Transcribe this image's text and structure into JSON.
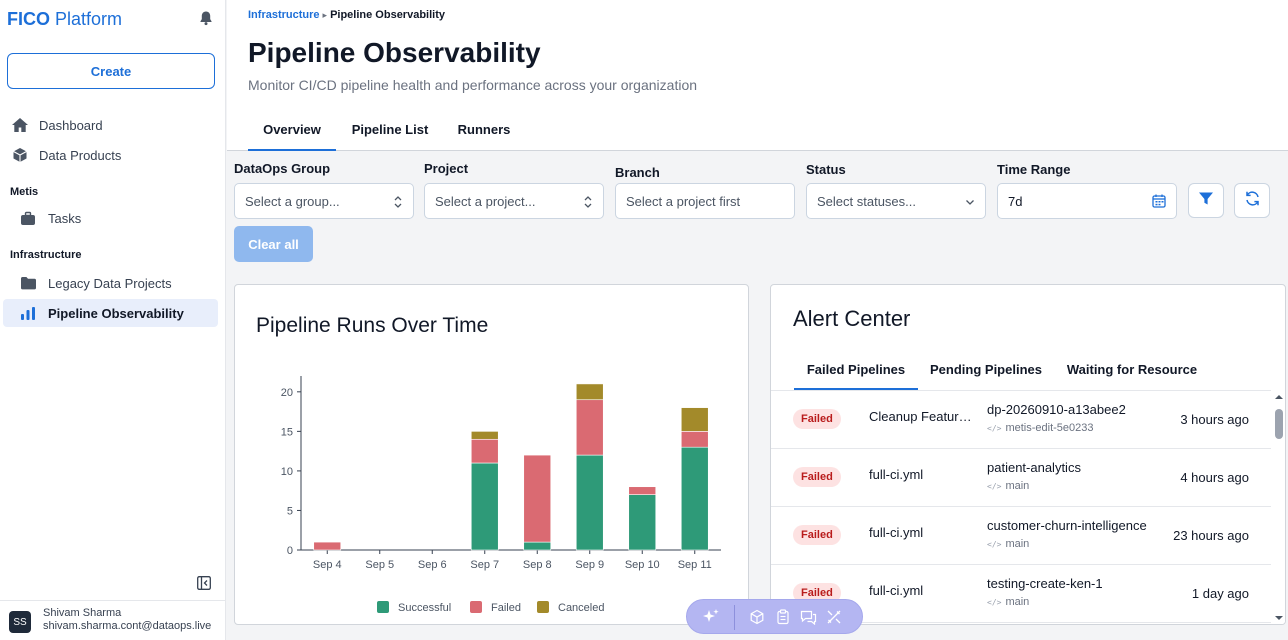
{
  "sidebar": {
    "brand_bold": "FICO",
    "brand_rest": "Platform",
    "create_label": "Create",
    "items": [
      {
        "label": "Dashboard"
      },
      {
        "label": "Data Products"
      }
    ],
    "section_metis": "Metis",
    "metis_items": [
      {
        "label": "Tasks"
      }
    ],
    "section_infra": "Infrastructure",
    "infra_items": [
      {
        "label": "Legacy Data Projects"
      },
      {
        "label": "Pipeline Observability"
      }
    ],
    "user": {
      "initials": "SS",
      "name": "Shivam Sharma",
      "email": "shivam.sharma.cont@dataops.live"
    }
  },
  "header": {
    "breadcrumb": {
      "parent": "Infrastructure",
      "separator": "▸",
      "current": "Pipeline Observability"
    },
    "title": "Pipeline Observability",
    "subtitle": "Monitor CI/CD pipeline health and performance across your organization",
    "tabs": [
      {
        "label": "Overview"
      },
      {
        "label": "Pipeline List"
      },
      {
        "label": "Runners"
      }
    ]
  },
  "filters": {
    "group": {
      "label": "DataOps Group",
      "placeholder": "Select a group..."
    },
    "project": {
      "label": "Project",
      "placeholder": "Select a project..."
    },
    "branch": {
      "label": "Branch",
      "placeholder": "Select a project first"
    },
    "status": {
      "label": "Status",
      "placeholder": "Select statuses..."
    },
    "time_range": {
      "label": "Time Range",
      "value": "7d"
    },
    "clear_label": "Clear all"
  },
  "chart": {
    "title": "Pipeline Runs Over Time",
    "colors": {
      "successful": "#2e9a78",
      "failed": "#da6a72",
      "canceled": "#a38a2a"
    }
  },
  "chart_data": {
    "type": "bar",
    "stacked": true,
    "title": "Pipeline Runs Over Time",
    "categories": [
      "Sep 4",
      "Sep 5",
      "Sep 6",
      "Sep 7",
      "Sep 8",
      "Sep 9",
      "Sep 10",
      "Sep 11"
    ],
    "series": [
      {
        "name": "Successful",
        "values": [
          0,
          0,
          0,
          11,
          1,
          12,
          7,
          13
        ]
      },
      {
        "name": "Failed",
        "values": [
          1,
          0,
          0,
          3,
          11,
          7,
          1,
          2
        ]
      },
      {
        "name": "Canceled",
        "values": [
          0,
          0,
          0,
          1,
          0,
          2,
          0,
          3
        ]
      }
    ],
    "ylim": [
      0,
      22
    ],
    "yticks": [
      0,
      5,
      10,
      15,
      20
    ],
    "legend": "bottom",
    "grid": false
  },
  "alerts": {
    "title": "Alert Center",
    "tabs": [
      {
        "label": "Failed Pipelines"
      },
      {
        "label": "Pending Pipelines"
      },
      {
        "label": "Waiting for Resource"
      }
    ],
    "rows": [
      {
        "status": "Failed",
        "pipeline": "Cleanup Feature Branches",
        "project": "dp-20260910-a13abee2",
        "branch": "metis-edit-5e0233",
        "ago": "3 hours ago"
      },
      {
        "status": "Failed",
        "pipeline": "full-ci.yml",
        "project": "patient-analytics",
        "branch": "main",
        "ago": "4 hours ago"
      },
      {
        "status": "Failed",
        "pipeline": "full-ci.yml",
        "project": "customer-churn-intelligence",
        "branch": "main",
        "ago": "23 hours ago"
      },
      {
        "status": "Failed",
        "pipeline": "full-ci.yml",
        "project": "testing-create-ken-1",
        "branch": "main",
        "ago": "1 day ago"
      }
    ]
  }
}
